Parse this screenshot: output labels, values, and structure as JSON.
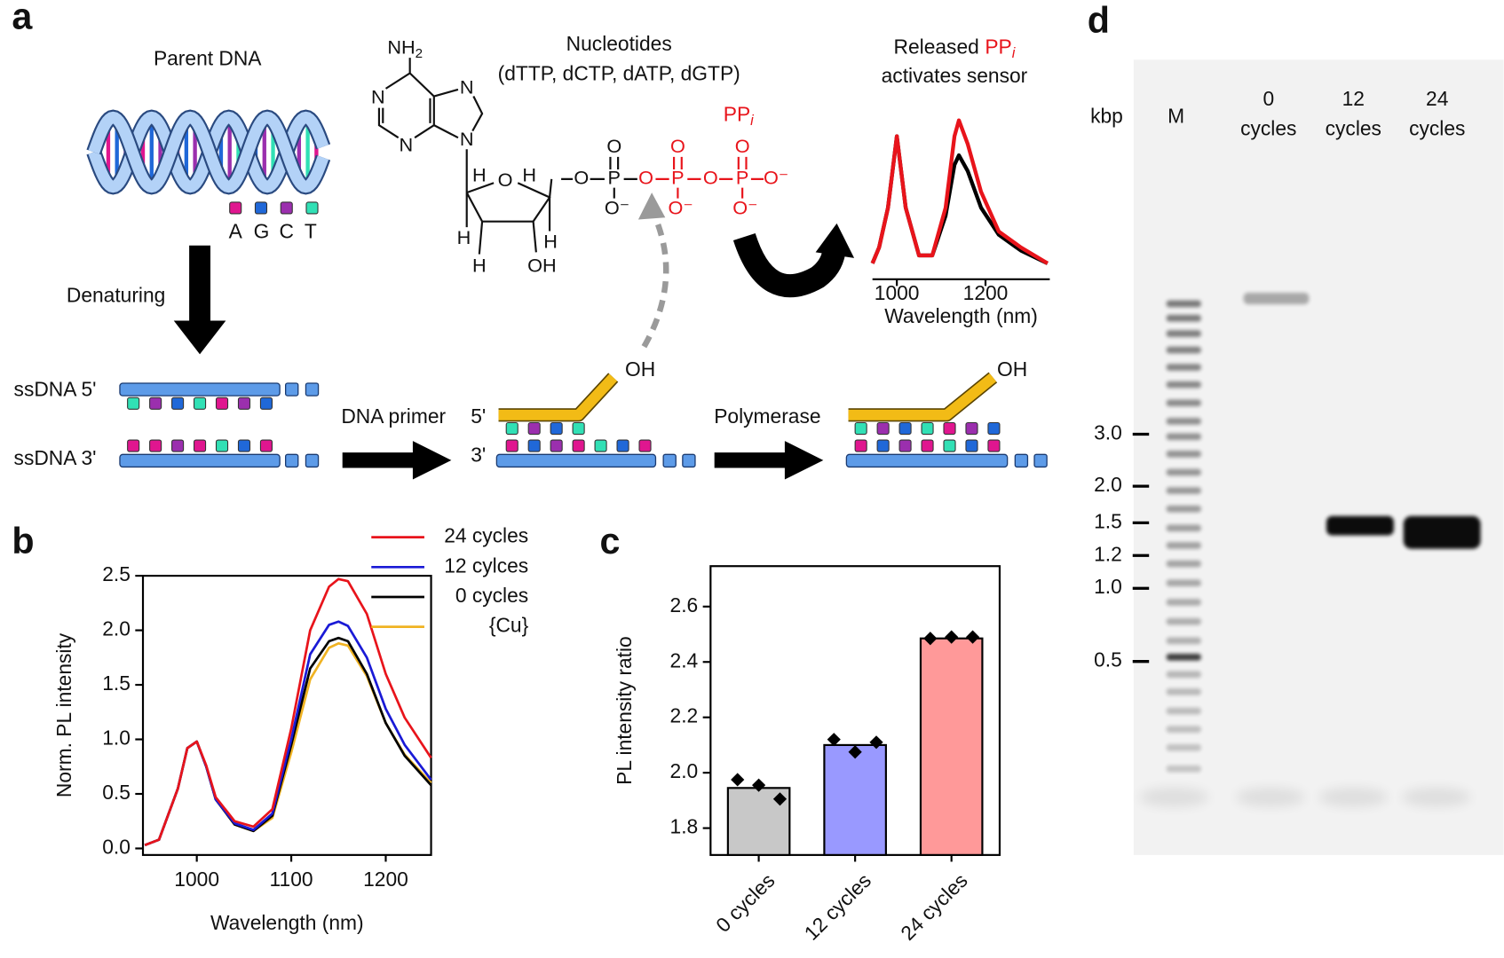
{
  "panel_labels": [
    "a",
    "b",
    "c",
    "d"
  ],
  "diagram": {
    "parent_dna": "Parent DNA",
    "bases": [
      "A",
      "G",
      "C",
      "T"
    ],
    "denaturing": "Denaturing",
    "ssdna_5": "ssDNA 5'",
    "ssdna_3": "ssDNA 3'",
    "dna_primer": "DNA primer",
    "primer_5": "5'",
    "primer_3": "3'",
    "polymerase": "Polymerase",
    "hydroxyl": [
      "OH",
      "OH"
    ],
    "nucleotides": "Nucleotides",
    "nucleotide_list": "(dTTP, dCTP, dATP, dGTP)",
    "amine": "NH",
    "amine_subscript": "2",
    "atoms": [
      "N",
      "N",
      "N",
      "N",
      "O",
      "H",
      "H",
      "H",
      "H",
      "H",
      "OH",
      "O",
      "P",
      "O",
      "O⁻",
      "O",
      "P",
      "O",
      "O⁻",
      "O",
      "P",
      "O",
      "O⁻",
      "O⁻"
    ],
    "ppi": "PP",
    "ppi_subscript": "i",
    "sensor_caption": [
      "Released",
      "PP",
      "i",
      "activates sensor"
    ]
  },
  "chart_data": [
    {
      "type": "line",
      "x": [
        945,
        960,
        980,
        1000,
        1020,
        1050,
        1080,
        1110,
        1130,
        1140,
        1160,
        1190,
        1230,
        1280,
        1340
      ],
      "series": [
        {
          "color": "#e8141b",
          "values": [
            0.1,
            0.2,
            0.45,
            0.9,
            0.45,
            0.15,
            0.15,
            0.45,
            0.9,
            1.0,
            0.85,
            0.55,
            0.3,
            0.2,
            0.1
          ]
        },
        {
          "color": "#000000",
          "values": [
            0.1,
            0.2,
            0.45,
            0.9,
            0.45,
            0.15,
            0.15,
            0.4,
            0.72,
            0.78,
            0.68,
            0.45,
            0.28,
            0.18,
            0.1
          ]
        }
      ],
      "xlim": [
        945,
        1345
      ],
      "ylim": [
        0,
        1
      ],
      "xticks": [
        1000,
        1200
      ],
      "xlabel": "Wavelength (nm)"
    },
    {
      "type": "line",
      "x": [
        945,
        960,
        980,
        990,
        1000,
        1010,
        1020,
        1040,
        1060,
        1080,
        1100,
        1120,
        1140,
        1150,
        1160,
        1180,
        1200,
        1220,
        1248
      ],
      "series": [
        {
          "name": "24 cycles",
          "color": "#e8141b",
          "values": [
            0.03,
            0.08,
            0.55,
            0.92,
            0.98,
            0.76,
            0.47,
            0.25,
            0.2,
            0.36,
            1.1,
            2.0,
            2.4,
            2.47,
            2.45,
            2.15,
            1.6,
            1.2,
            0.83
          ]
        },
        {
          "name": "12 cylces",
          "color": "#1a1ad6",
          "values": [
            0.03,
            0.08,
            0.55,
            0.92,
            0.98,
            0.75,
            0.45,
            0.23,
            0.17,
            0.32,
            1.0,
            1.78,
            2.05,
            2.08,
            2.04,
            1.75,
            1.28,
            0.95,
            0.63
          ]
        },
        {
          "name": "0 cycles",
          "color": "#000000",
          "values": [
            0.03,
            0.08,
            0.55,
            0.92,
            0.98,
            0.75,
            0.45,
            0.22,
            0.16,
            0.3,
            0.95,
            1.65,
            1.9,
            1.93,
            1.9,
            1.6,
            1.15,
            0.85,
            0.58
          ]
        },
        {
          "name": "{Cu}",
          "color": "#f0b323",
          "values": [
            0.03,
            0.08,
            0.55,
            0.92,
            0.98,
            0.75,
            0.45,
            0.22,
            0.16,
            0.28,
            0.88,
            1.55,
            1.84,
            1.88,
            1.86,
            1.58,
            1.15,
            0.86,
            0.6
          ]
        }
      ],
      "xlim": [
        943,
        1248
      ],
      "ylim": [
        -0.06,
        2.5
      ],
      "xticks": [
        1000,
        1100,
        1200
      ],
      "yticks": [
        {
          "value": 0,
          "label": "0.0"
        },
        0.5,
        {
          "value": 1,
          "label": "1.0"
        },
        1.5,
        {
          "value": 2,
          "label": "2.0"
        },
        2.5
      ],
      "xlabel": "Wavelength (nm)",
      "ylabel": "Norm. PL intensity",
      "legend": "upper right"
    },
    {
      "type": "bar",
      "categories": [
        "0 cycles",
        "12 cycles",
        "24 cycles"
      ],
      "values": [
        1.945,
        2.1,
        2.485
      ],
      "colors": [
        "#c8c8c8",
        "#9999ff",
        "#ff9999"
      ],
      "replicates": [
        [
          1.975,
          1.955,
          1.905
        ],
        [
          2.12,
          2.075,
          2.11
        ],
        [
          2.485,
          2.49,
          2.49
        ]
      ],
      "ylim": [
        1.703,
        2.746
      ],
      "yticks": [
        1.8,
        {
          "value": 2,
          "label": "2.0"
        },
        2.2,
        2.4,
        2.6
      ],
      "ylabel": "PL intensity ratio"
    }
  ],
  "gel": {
    "unit": "kbp",
    "lanes": [
      [
        "M"
      ],
      [
        "0",
        "cycles"
      ],
      [
        "12",
        "cycles"
      ],
      [
        "24",
        "cycles"
      ]
    ],
    "size_labels": [
      "3.0",
      "2.0",
      "1.5",
      "1.2",
      "1.0",
      "0.5"
    ]
  }
}
